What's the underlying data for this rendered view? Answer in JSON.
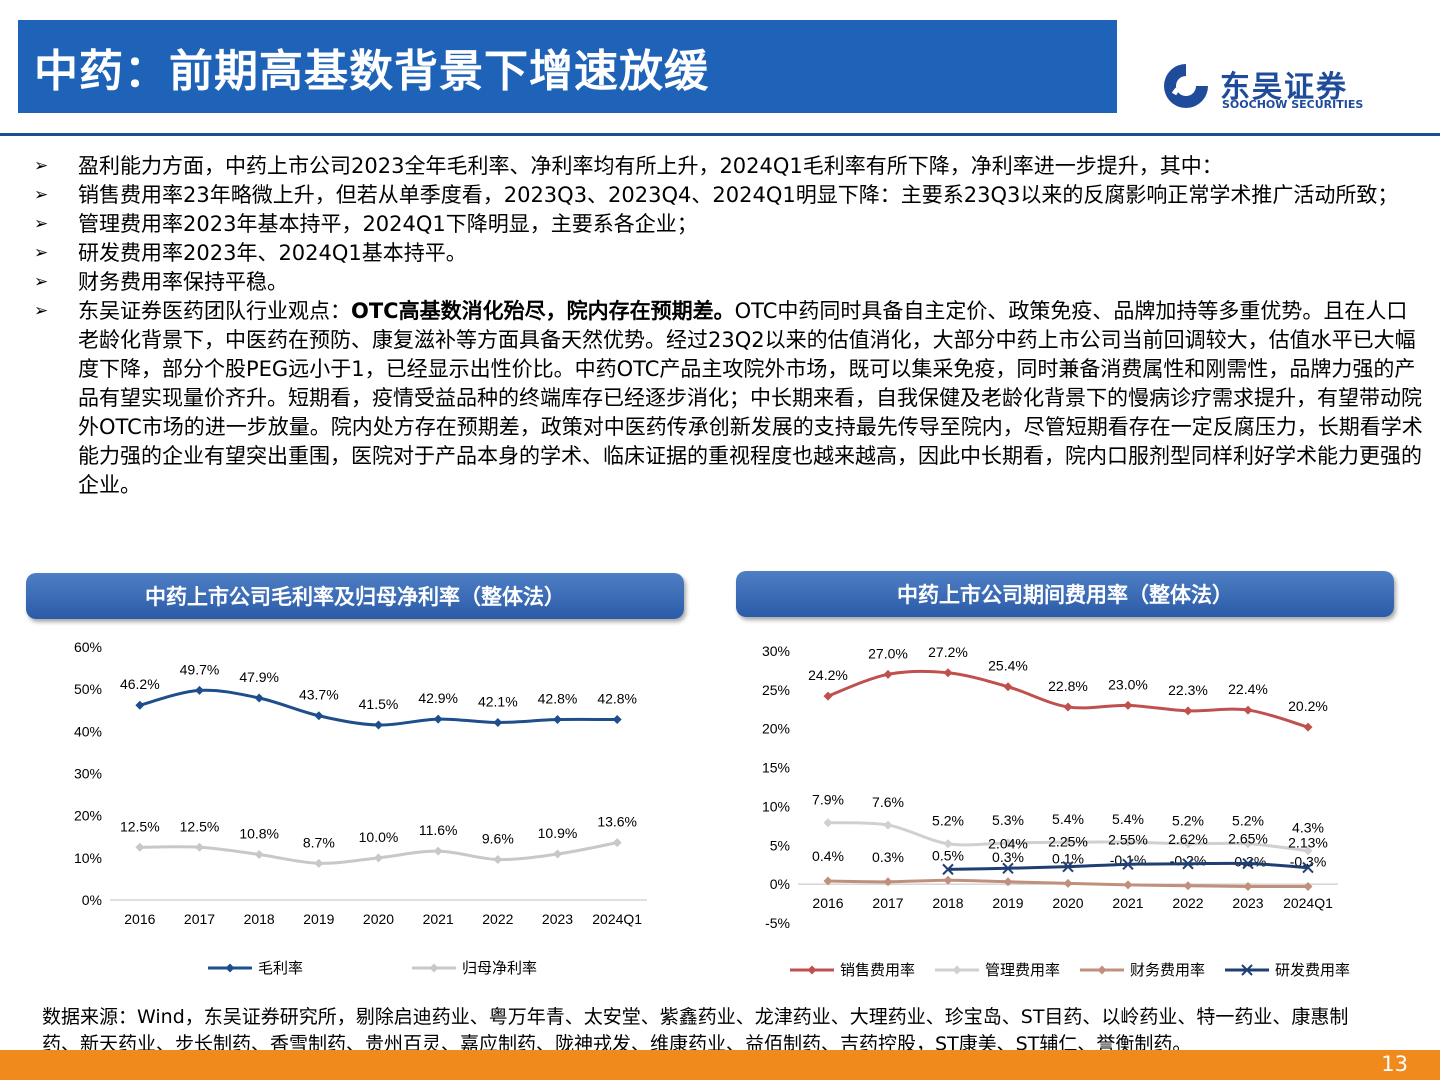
{
  "title": "中药：前期高基数背景下增速放缓",
  "logo": {
    "cn": "东吴证券",
    "en": "SOOCHOW SECURITIES"
  },
  "bullets": [
    {
      "pre": "盈利能力方面，中药上市公司2023全年毛利率、净利率均有所上升，2024Q1毛利率有所下降，净利率进一步提升，其中：",
      "bold": "",
      "post": ""
    },
    {
      "pre": "销售费用率23年略微上升，但若从单季度看，2023Q3、2023Q4、2024Q1明显下降：主要系23Q3以来的反腐影响正常学术推广活动所致；",
      "bold": "",
      "post": ""
    },
    {
      "pre": "管理费用率2023年基本持平，2024Q1下降明显，主要系各企业；",
      "bold": "",
      "post": ""
    },
    {
      "pre": "研发费用率2023年、2024Q1基本持平。",
      "bold": "",
      "post": ""
    },
    {
      "pre": "财务费用率保持平稳。",
      "bold": "",
      "post": ""
    },
    {
      "pre": "东吴证券医药团队行业观点：",
      "bold": "OTC高基数消化殆尽，院内存在预期差。",
      "post": "OTC中药同时具备自主定价、政策免疫、品牌加持等多重优势。且在人口老龄化背景下，中医药在预防、康复滋补等方面具备天然优势。经过23Q2以来的估值消化，大部分中药上市公司当前回调较大，估值水平已大幅度下降，部分个股PEG远小于1，已经显示出性价比。中药OTC产品主攻院外市场，既可以集采免疫，同时兼备消费属性和刚需性，品牌力强的产品有望实现量价齐升。短期看，疫情受益品种的终端库存已经逐步消化；中长期来看，自我保健及老龄化背景下的慢病诊疗需求提升，有望带动院外OTC市场的进一步放量。院内处方存在预期差，政策对中医药传承创新发展的支持最先传导至院内，尽管短期看存在一定反腐压力，长期看学术能力强的企业有望突出重围，医院对于产品本身的学术、临床证据的重视程度也越来越高，因此中长期看，院内口服剂型同样利好学术能力更强的企业。"
    }
  ],
  "chart_data": [
    {
      "type": "line",
      "title": "中药上市公司毛利率及归母净利率（整体法）",
      "categories": [
        "2016",
        "2017",
        "2018",
        "2019",
        "2020",
        "2021",
        "2022",
        "2023",
        "2024Q1"
      ],
      "ylim": [
        0,
        60
      ],
      "yticks": [
        "0%",
        "10%",
        "20%",
        "30%",
        "40%",
        "50%",
        "60%"
      ],
      "legend_position": "bottom",
      "series": [
        {
          "name": "毛利率",
          "color": "#1f4e8c",
          "marker": "diamond",
          "values": [
            46.2,
            49.7,
            47.9,
            43.7,
            41.5,
            42.9,
            42.1,
            42.8,
            42.8
          ],
          "labels": [
            "46.2%",
            "49.7%",
            "47.9%",
            "43.7%",
            "41.5%",
            "42.9%",
            "42.1%",
            "42.8%",
            "42.8%"
          ]
        },
        {
          "name": "归母净利率",
          "color": "#c8c8c8",
          "marker": "diamond",
          "values": [
            12.5,
            12.5,
            10.8,
            8.7,
            10.0,
            11.6,
            9.6,
            10.9,
            13.6
          ],
          "labels": [
            "12.5%",
            "12.5%",
            "10.8%",
            "8.7%",
            "10.0%",
            "11.6%",
            "9.6%",
            "10.9%",
            "13.6%"
          ]
        }
      ]
    },
    {
      "type": "line",
      "title": "中药上市公司期间费用率（整体法）",
      "categories": [
        "2016",
        "2017",
        "2018",
        "2019",
        "2020",
        "2021",
        "2022",
        "2023",
        "2024Q1"
      ],
      "ylim": [
        -5,
        30
      ],
      "yticks": [
        "-5%",
        "0%",
        "5%",
        "10%",
        "15%",
        "20%",
        "25%",
        "30%"
      ],
      "legend_position": "bottom",
      "series": [
        {
          "name": "销售费用率",
          "color": "#c0504d",
          "marker": "diamond",
          "values": [
            24.2,
            27.0,
            27.2,
            25.4,
            22.8,
            23.0,
            22.3,
            22.4,
            20.2
          ],
          "labels": [
            "24.2%",
            "27.0%",
            "27.2%",
            "25.4%",
            "22.8%",
            "23.0%",
            "22.3%",
            "22.4%",
            "20.2%"
          ]
        },
        {
          "name": "管理费用率",
          "color": "#d0d0d0",
          "marker": "diamond",
          "values": [
            7.9,
            7.6,
            5.2,
            5.3,
            5.4,
            5.4,
            5.2,
            5.2,
            4.3
          ],
          "labels": [
            "7.9%",
            "7.6%",
            "5.2%",
            "5.3%",
            "5.4%",
            "5.4%",
            "5.2%",
            "5.2%",
            "4.3%"
          ]
        },
        {
          "name": "财务费用率",
          "color": "#c0907d",
          "marker": "diamond",
          "values": [
            0.4,
            0.3,
            0.5,
            0.3,
            0.1,
            -0.1,
            -0.2,
            -0.3,
            -0.3
          ],
          "labels": [
            "0.4%",
            "0.3%",
            "0.5%",
            "0.3%",
            "0.1%",
            "-0.1%",
            "-0.2%",
            "-0.3%",
            "-0.3%"
          ]
        },
        {
          "name": "研发费用率",
          "color": "#1f3f73",
          "marker": "x",
          "values": [
            null,
            null,
            1.9,
            2.04,
            2.25,
            2.55,
            2.62,
            2.65,
            2.13
          ],
          "labels": [
            "",
            "",
            "",
            "2.04%",
            "2.25%",
            "2.55%",
            "2.62%",
            "2.65%",
            "2.13%"
          ]
        }
      ]
    }
  ],
  "source": "数据来源：Wind，东吴证券研究所，剔除启迪药业、粤万年青、太安堂、紫鑫药业、龙津药业、大理药业、珍宝岛、ST目药、以岭药业、特一药业、康惠制药、新天药业、步长制药、香雪制药、贵州百灵、嘉应制药、陇神戎发、维康药业、益佰制药、吉药控股，ST康美、ST辅仁、誉衡制药。",
  "page_number": "13"
}
